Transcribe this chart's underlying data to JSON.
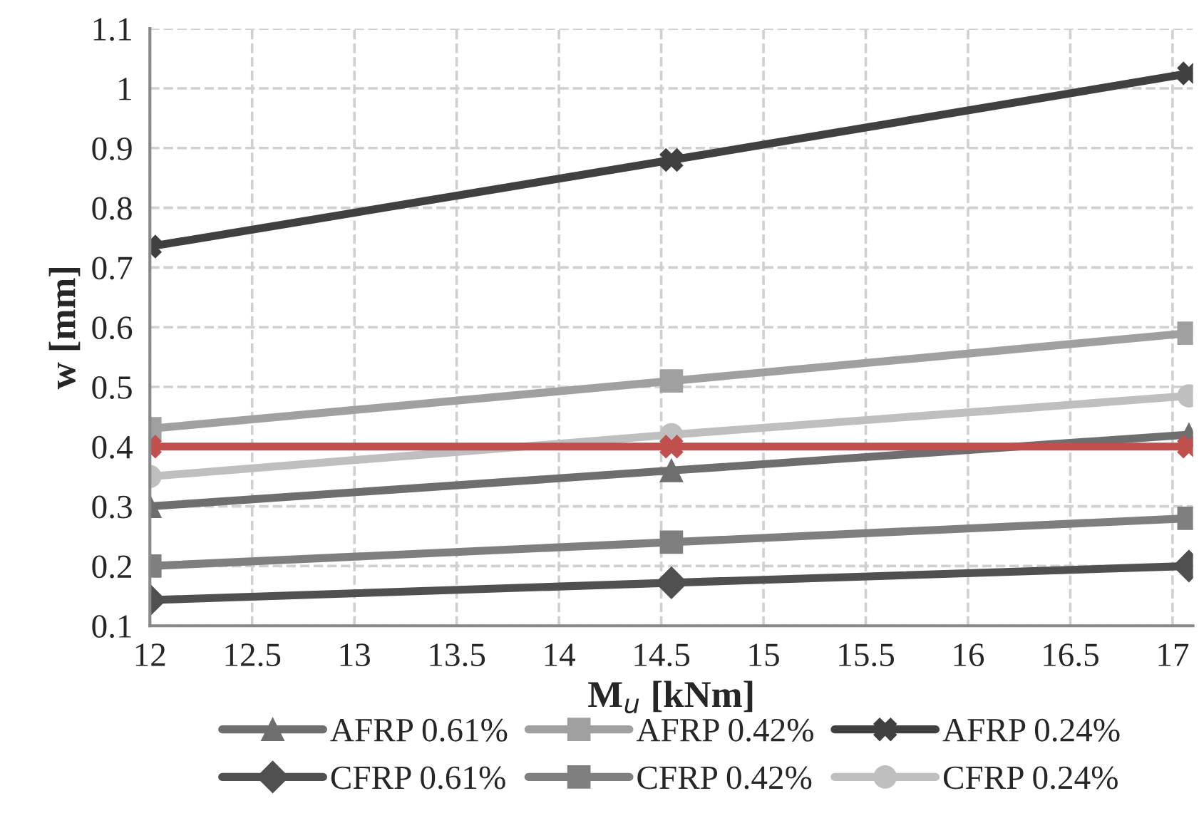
{
  "chart_data": {
    "type": "line",
    "xlabel": "M$_{u}$ [kNm]",
    "ylabel": "w [mm]",
    "x": [
      12,
      14.55,
      17.08
    ],
    "series": [
      {
        "name": "AFRP 0.61%",
        "color": "#6e6e6e",
        "marker": "triangle",
        "values": [
          0.3,
          0.36,
          0.42
        ]
      },
      {
        "name": "AFRP 0.42%",
        "color": "#a0a0a0",
        "marker": "square",
        "values": [
          0.43,
          0.51,
          0.59
        ]
      },
      {
        "name": "AFRP 0.24%",
        "color": "#404040",
        "marker": "cross",
        "values": [
          0.735,
          0.88,
          1.025
        ]
      },
      {
        "name": "CFRP 0.61%",
        "color": "#505050",
        "marker": "diamond",
        "values": [
          0.143,
          0.172,
          0.2
        ]
      },
      {
        "name": "CFRP 0.42%",
        "color": "#7f7f7f",
        "marker": "square",
        "values": [
          0.2,
          0.24,
          0.28
        ]
      },
      {
        "name": "CFRP 0.24%",
        "color": "#bfbfbf",
        "marker": "circle",
        "values": [
          0.35,
          0.42,
          0.485
        ]
      },
      {
        "color": "#c0504d",
        "marker": "cross",
        "values": [
          0.4,
          0.4,
          0.4
        ]
      }
    ],
    "xlim": [
      12,
      17.1
    ],
    "xticks": [
      12,
      12.5,
      13,
      13.5,
      14,
      14.5,
      15,
      15.5,
      16,
      16.5,
      17
    ],
    "ylim": [
      0.1,
      1.1
    ],
    "yticks": [
      0.1,
      0.2,
      0.3,
      0.4,
      0.5,
      0.6,
      0.7,
      0.8,
      0.9,
      1,
      1.1
    ],
    "grid": true,
    "legend": "bottom"
  }
}
